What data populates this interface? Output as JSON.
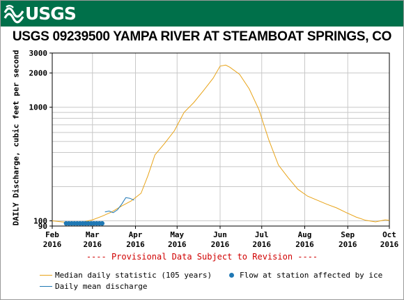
{
  "banner": {
    "logo_text": "USGS",
    "bg_color": "#00704a"
  },
  "title": "USGS 09239500 YAMPA RIVER AT STEAMBOAT SPRINGS, CO",
  "provisional_note": "---- Provisional Data Subject to Revision ----",
  "legend": {
    "median": "Median daily statistic (105 years)",
    "ice": "Flow at station affected by ice",
    "mean": "Daily mean discharge"
  },
  "colors": {
    "median": "#e8a317",
    "mean": "#1f78b4",
    "ice": "#1f78b4"
  },
  "chart_data": {
    "type": "line",
    "title": "USGS 09239500 YAMPA RIVER AT STEAMBOAT SPRINGS, CO",
    "ylabel": "DAILY Discharge, cubic feet per second",
    "xlabel": "",
    "y_scale": "log",
    "ylim": [
      90,
      3000
    ],
    "xlim": [
      "2016-02-01",
      "2016-10-01"
    ],
    "grid": true,
    "legend_position": "bottom",
    "y_tick_labels": [
      "90",
      "100",
      "1000",
      "2000",
      "3000"
    ],
    "x_tick_labels": [
      [
        "Feb",
        "2016"
      ],
      [
        "Mar",
        "2016"
      ],
      [
        "Apr",
        "2016"
      ],
      [
        "May",
        "2016"
      ],
      [
        "Jun",
        "2016"
      ],
      [
        "Jul",
        "2016"
      ],
      [
        "Aug",
        "2016"
      ],
      [
        "Sep",
        "2016"
      ],
      [
        "Oct",
        "2016"
      ]
    ],
    "series": [
      {
        "name": "Median daily statistic (105 years)",
        "points": [
          [
            "2016-02-01",
            100
          ],
          [
            "2016-02-08",
            98
          ],
          [
            "2016-02-15",
            96
          ],
          [
            "2016-02-22",
            97
          ],
          [
            "2016-03-01",
            102
          ],
          [
            "2016-03-08",
            110
          ],
          [
            "2016-03-15",
            120
          ],
          [
            "2016-03-22",
            135
          ],
          [
            "2016-03-29",
            150
          ],
          [
            "2016-04-05",
            175
          ],
          [
            "2016-04-10",
            250
          ],
          [
            "2016-04-15",
            380
          ],
          [
            "2016-04-22",
            480
          ],
          [
            "2016-04-29",
            620
          ],
          [
            "2016-05-06",
            900
          ],
          [
            "2016-05-13",
            1100
          ],
          [
            "2016-05-20",
            1400
          ],
          [
            "2016-05-27",
            1800
          ],
          [
            "2016-06-01",
            2300
          ],
          [
            "2016-06-05",
            2350
          ],
          [
            "2016-06-08",
            2250
          ],
          [
            "2016-06-15",
            1950
          ],
          [
            "2016-06-22",
            1450
          ],
          [
            "2016-06-29",
            950
          ],
          [
            "2016-07-06",
            520
          ],
          [
            "2016-07-13",
            310
          ],
          [
            "2016-07-20",
            240
          ],
          [
            "2016-07-27",
            190
          ],
          [
            "2016-08-03",
            165
          ],
          [
            "2016-08-10",
            152
          ],
          [
            "2016-08-17",
            140
          ],
          [
            "2016-08-24",
            130
          ],
          [
            "2016-08-31",
            118
          ],
          [
            "2016-09-07",
            108
          ],
          [
            "2016-09-14",
            101
          ],
          [
            "2016-09-21",
            98
          ],
          [
            "2016-09-28",
            102
          ],
          [
            "2016-10-01",
            101
          ]
        ]
      },
      {
        "name": "Daily mean discharge",
        "points": [
          [
            "2016-03-10",
            120
          ],
          [
            "2016-03-13",
            122
          ],
          [
            "2016-03-16",
            118
          ],
          [
            "2016-03-19",
            125
          ],
          [
            "2016-03-22",
            140
          ],
          [
            "2016-03-25",
            160
          ],
          [
            "2016-03-28",
            158
          ],
          [
            "2016-03-31",
            152
          ]
        ]
      },
      {
        "name": "Flow at station affected by ice",
        "points": [
          [
            "2016-02-11",
            95
          ],
          [
            "2016-02-13",
            95
          ],
          [
            "2016-02-15",
            95
          ],
          [
            "2016-02-17",
            95
          ],
          [
            "2016-02-19",
            95
          ],
          [
            "2016-02-21",
            95
          ],
          [
            "2016-02-23",
            95
          ],
          [
            "2016-02-25",
            95
          ],
          [
            "2016-02-27",
            95
          ],
          [
            "2016-02-29",
            95
          ],
          [
            "2016-03-02",
            95
          ],
          [
            "2016-03-04",
            95
          ],
          [
            "2016-03-06",
            95
          ],
          [
            "2016-03-08",
            95
          ]
        ]
      }
    ]
  }
}
